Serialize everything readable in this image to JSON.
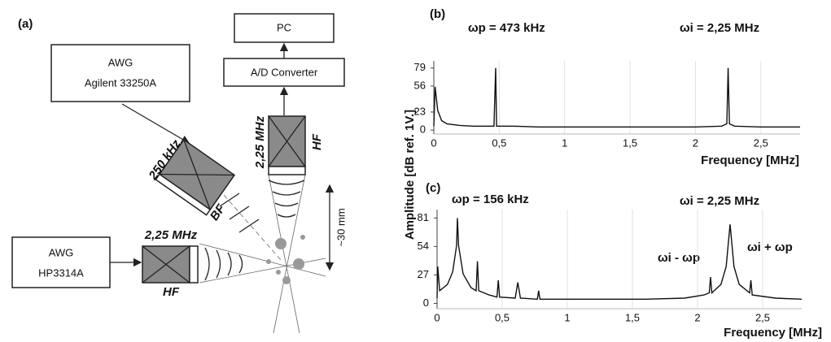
{
  "diagram": {
    "label": "(a)",
    "awg1": [
      "AWG",
      "Agilent 33250A"
    ],
    "awg2": [
      "AWG",
      "HP3314A"
    ],
    "pc": "PC",
    "adc": "A/D Converter",
    "bf_freq": "250 kHz",
    "bf": "BF",
    "hf_top_freq": "2,25 MHz",
    "hf_top": "HF",
    "hf_left_freq": "2,25 MHz",
    "hf_left": "HF",
    "distance": "~30 mm"
  },
  "shared_ylabel": "Amplitude [dB ref. 1V.]",
  "chart_data": [
    {
      "type": "line",
      "label": "(b)",
      "xlabel": "Frequency [MHz]",
      "annotations": [
        "ωp = 473 kHz",
        "ωi = 2,25 MHz"
      ],
      "color": "#111111",
      "x": [
        0,
        0.01,
        0.03,
        0.06,
        0.1,
        0.2,
        0.3,
        0.4,
        0.46,
        0.473,
        0.48,
        0.6,
        0.8,
        1.0,
        1.2,
        1.4,
        1.6,
        1.8,
        2.0,
        2.2,
        2.24,
        2.25,
        2.26,
        2.3,
        2.5,
        2.7,
        2.8
      ],
      "values": [
        5,
        55,
        25,
        12,
        8,
        6,
        5,
        5,
        5,
        79,
        5,
        5,
        4,
        4,
        4,
        4,
        4,
        4,
        4,
        5,
        8,
        79,
        8,
        5,
        4,
        4,
        4
      ],
      "xlim": [
        0,
        2.8
      ],
      "ylim": [
        -5,
        88
      ],
      "xticks": [
        0,
        {
          "value": 0.5,
          "label": "0,5"
        },
        1,
        {
          "value": 1.5,
          "label": "1,5"
        },
        2,
        {
          "value": 2.5,
          "label": "2,5"
        }
      ],
      "yticks": [
        0,
        23,
        56,
        79
      ],
      "grid": true
    },
    {
      "type": "line",
      "label": "(c)",
      "xlabel": "Frequency [MHz]",
      "annotations": [
        "ωp = 156 kHz",
        "ωi = 2,25 MHz",
        "ωi - ωp",
        "ωi + ωp"
      ],
      "color": "#111111",
      "x": [
        0,
        0.005,
        0.02,
        0.08,
        0.12,
        0.15,
        0.156,
        0.165,
        0.2,
        0.26,
        0.3,
        0.31,
        0.32,
        0.4,
        0.46,
        0.47,
        0.48,
        0.6,
        0.62,
        0.64,
        0.77,
        0.78,
        0.79,
        1.0,
        1.3,
        1.6,
        1.9,
        2.05,
        2.09,
        2.1,
        2.11,
        2.18,
        2.22,
        2.25,
        2.28,
        2.32,
        2.4,
        2.41,
        2.42,
        2.6,
        2.8
      ],
      "values": [
        5,
        35,
        12,
        18,
        30,
        55,
        81,
        55,
        28,
        15,
        12,
        40,
        12,
        8,
        6,
        22,
        6,
        5,
        20,
        5,
        4,
        12,
        4,
        4,
        4,
        4,
        5,
        8,
        10,
        25,
        10,
        18,
        35,
        75,
        35,
        18,
        10,
        22,
        8,
        5,
        4
      ],
      "xlim": [
        0,
        2.8
      ],
      "ylim": [
        -5,
        89
      ],
      "xticks": [
        0,
        {
          "value": 0.5,
          "label": "0,5"
        },
        1,
        {
          "value": 1.5,
          "label": "1,5"
        },
        2,
        {
          "value": 2.5,
          "label": "2,5"
        }
      ],
      "yticks": [
        0,
        27,
        54,
        81
      ],
      "grid": true
    }
  ]
}
